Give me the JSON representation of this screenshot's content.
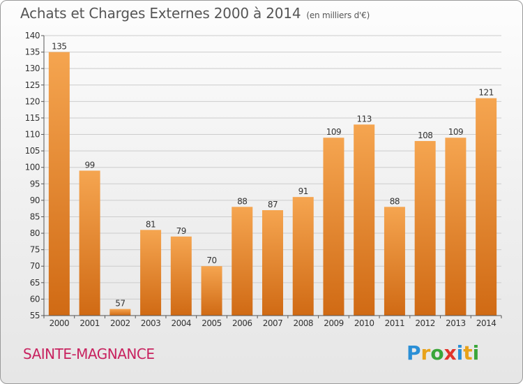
{
  "title": "Achats et Charges Externes 2000 à 2014",
  "subtitle": "(en milliers d'€)",
  "commune": "SAINTE-MAGNANCE",
  "logo": {
    "text": "Proxiti",
    "letters": [
      {
        "ch": "P",
        "color": "#2a8fd6"
      },
      {
        "ch": "r",
        "color": "#e8a21a"
      },
      {
        "ch": "o",
        "color": "#3aa63a"
      },
      {
        "ch": "x",
        "color": "#e2342a"
      },
      {
        "ch": "i",
        "color": "#2a8fd6"
      },
      {
        "ch": "t",
        "color": "#e8a21a"
      },
      {
        "ch": "i",
        "color": "#3aa63a"
      }
    ]
  },
  "colors": {
    "bar_light": "#f5a550",
    "bar_dark": "#d06a14",
    "grid": "#cccccc",
    "axis": "#555555",
    "text": "#333333"
  },
  "chart_data": {
    "type": "bar",
    "categories": [
      "2000",
      "2001",
      "2002",
      "2003",
      "2004",
      "2005",
      "2006",
      "2007",
      "2008",
      "2009",
      "2010",
      "2011",
      "2012",
      "2013",
      "2014"
    ],
    "values": [
      135,
      99,
      57,
      81,
      79,
      70,
      88,
      87,
      91,
      109,
      113,
      88,
      108,
      109,
      121
    ],
    "ylim": [
      55,
      140
    ],
    "yticks": [
      55,
      60,
      65,
      70,
      75,
      80,
      85,
      90,
      95,
      100,
      105,
      110,
      115,
      120,
      125,
      130,
      135,
      140
    ],
    "grid": true
  }
}
